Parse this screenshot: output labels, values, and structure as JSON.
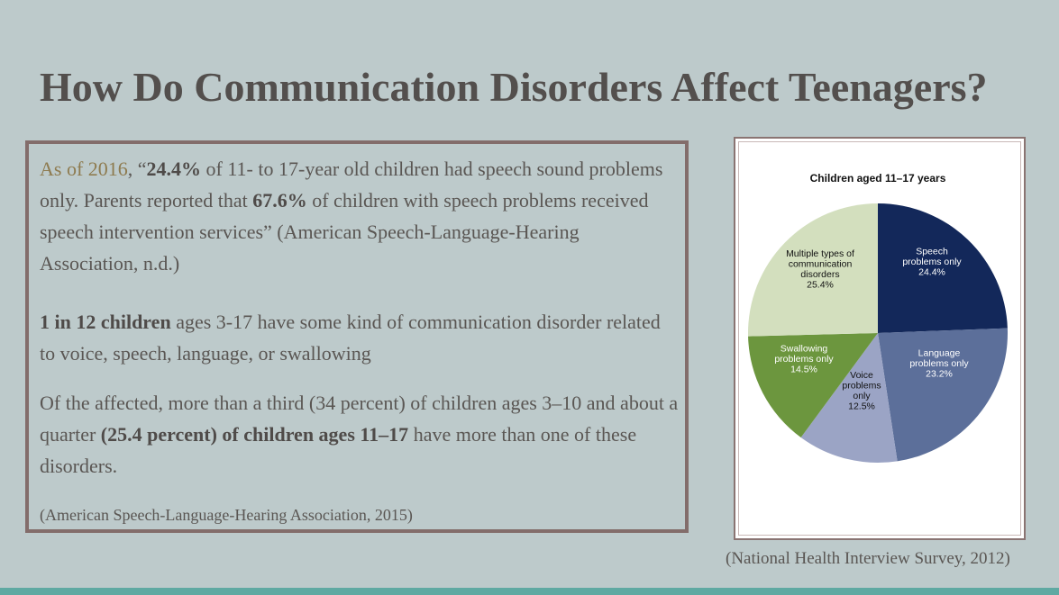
{
  "slide": {
    "title": "How Do Communication Disorders Affect Teenagers?",
    "accent_color": "#8e7b4f",
    "bottom_bar_color": "#5fa9a2"
  },
  "text_box": {
    "p1": {
      "lead": "As of 2016",
      "a": ", “",
      "b1": "24.4%",
      "c": " of 11- to 17-year old children had speech sound problems only. Parents reported that ",
      "b2": "67.6%",
      "d": " of children with speech problems received speech intervention services” (American Speech-Language-Hearing Association, n.d.)"
    },
    "p2": {
      "b": "1 in 12 children",
      "rest": " ages 3-17 have some kind of communication disorder related to voice, speech, language, or swallowing"
    },
    "p3": {
      "a": "Of the affected, more than a third (34 percent) of children ages 3–10 and about a quarter ",
      "b": "(25.4 percent) of children ages 11–17",
      "c": " have more than one of these disorders."
    },
    "citation": "(American Speech-Language-Hearing Association, 2015)"
  },
  "chart_citation": "(National Health Interview Survey, 2012)",
  "chart_data": {
    "type": "pie",
    "title": "Children aged 11–17 years",
    "slices": [
      {
        "label": [
          "Speech",
          "problems only",
          "24.4%"
        ],
        "value": 24.4,
        "color": "#13285a",
        "text_color": "#ffffff"
      },
      {
        "label": [
          "Language",
          "problems only",
          "23.2%"
        ],
        "value": 23.2,
        "color": "#5c6f9a",
        "text_color": "#ffffff"
      },
      {
        "label": [
          "Voice",
          "problems",
          "only",
          "12.5%"
        ],
        "value": 12.5,
        "color": "#9ba4c5",
        "text_color": "#111111"
      },
      {
        "label": [
          "Swallowing",
          "problems only",
          "14.5%"
        ],
        "value": 14.5,
        "color": "#6c963e",
        "text_color": "#ffffff"
      },
      {
        "label": [
          "Multiple types of",
          "communication",
          "disorders",
          "25.4%"
        ],
        "value": 25.4,
        "color": "#d3dfbe",
        "text_color": "#111111"
      }
    ]
  }
}
